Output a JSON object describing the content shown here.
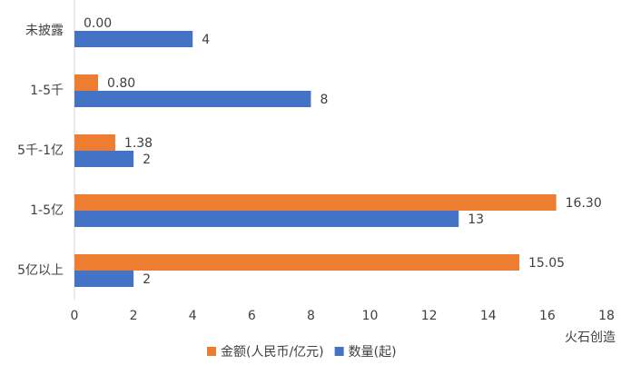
{
  "chart_data": {
    "type": "bar",
    "orientation": "horizontal",
    "categories": [
      "未披露",
      "1-5千",
      "5千-1亿",
      "1-5亿",
      "5亿以上"
    ],
    "series": [
      {
        "name": "金额(人民币/亿元)",
        "color": "#ed7d31",
        "values": [
          0.0,
          0.8,
          1.38,
          16.3,
          15.05
        ],
        "value_labels": [
          "0.00",
          "0.80",
          "1.38",
          "16.30",
          "15.05"
        ]
      },
      {
        "name": "数量(起)",
        "color": "#4472c4",
        "values": [
          4,
          8,
          2,
          13,
          2
        ]
      }
    ],
    "xlim": [
      0,
      18
    ],
    "xticks": [
      0,
      2,
      4,
      6,
      8,
      10,
      12,
      14,
      16,
      18
    ],
    "grid": false,
    "legend": "bottom",
    "watermark": "火石创造"
  }
}
